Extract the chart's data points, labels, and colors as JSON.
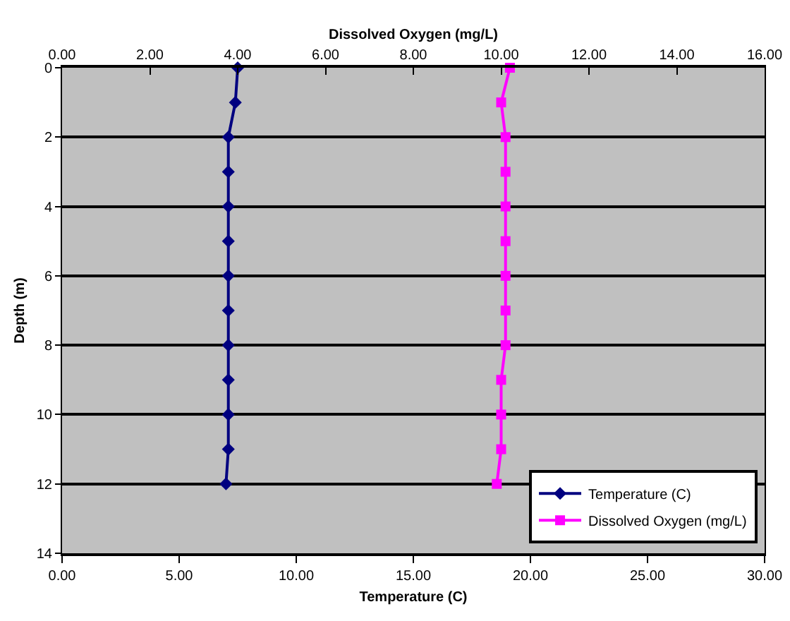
{
  "chart_data": {
    "type": "line",
    "xlabel": "Temperature (C)",
    "x2label": "Dissolved Oxygen (mg/L)",
    "ylabel": "Depth (m)",
    "xlim": [
      0,
      30
    ],
    "xticks": [
      {
        "value": 0,
        "label": "0.00"
      },
      {
        "value": 5,
        "label": "5.00"
      },
      {
        "value": 10,
        "label": "10.00"
      },
      {
        "value": 15,
        "label": "15.00"
      },
      {
        "value": 20,
        "label": "20.00"
      },
      {
        "value": 25,
        "label": "25.00"
      },
      {
        "value": 30,
        "label": "30.00"
      }
    ],
    "x2lim": [
      0,
      16
    ],
    "x2ticks": [
      {
        "value": 0,
        "label": "0.00"
      },
      {
        "value": 2,
        "label": "2.00"
      },
      {
        "value": 4,
        "label": "4.00"
      },
      {
        "value": 6,
        "label": "6.00"
      },
      {
        "value": 8,
        "label": "8.00"
      },
      {
        "value": 10,
        "label": "10.00"
      },
      {
        "value": 12,
        "label": "12.00"
      },
      {
        "value": 14,
        "label": "14.00"
      },
      {
        "value": 16,
        "label": "16.00"
      }
    ],
    "ylim": [
      14,
      0
    ],
    "yticks": [
      0,
      2,
      4,
      6,
      8,
      10,
      12,
      14
    ],
    "grid": "y",
    "legend": "bottom right",
    "line_style": "solid",
    "series": [
      {
        "name": "Temperature (C)",
        "color": "#000080",
        "marker": "diamond",
        "x": [
          7.5,
          7.4,
          7.1,
          7.1,
          7.1,
          7.1,
          7.1,
          7.1,
          7.1,
          7.1,
          7.1,
          7.1,
          7.0
        ],
        "values": [
          0,
          1,
          2,
          3,
          4,
          5,
          6,
          7,
          8,
          9,
          10,
          11,
          12
        ]
      },
      {
        "name": "Dissolved Oxygen (mg/L)",
        "color": "#ff00ff",
        "marker": "square",
        "axis": "x2",
        "x": [
          10.2,
          10.0,
          10.1,
          10.1,
          10.1,
          10.1,
          10.1,
          10.1,
          10.1,
          10.0,
          10.0,
          10.0,
          9.9
        ],
        "values": [
          0,
          1,
          2,
          3,
          4,
          5,
          6,
          7,
          8,
          9,
          10,
          11,
          12
        ]
      }
    ]
  }
}
